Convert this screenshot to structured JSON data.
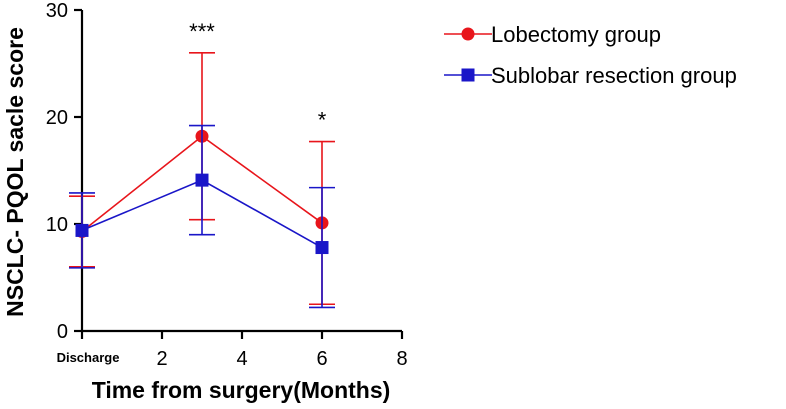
{
  "chart_data": {
    "type": "line",
    "xlabel": "Time from surgery(Months)",
    "ylabel": "NSCLC- PQOL sacle score",
    "xlim": [
      0,
      8
    ],
    "ylim": [
      0,
      30
    ],
    "x_ticks": [
      0,
      2,
      4,
      6,
      8
    ],
    "x_tick_labels": [
      "Discharge",
      "2",
      "4",
      "6",
      "8"
    ],
    "y_ticks": [
      0,
      10,
      20,
      30
    ],
    "y_tick_labels": [
      "0",
      "10",
      "20",
      "30"
    ],
    "grid": false,
    "legend_position": "top-right",
    "series": [
      {
        "name": "Lobectomy group",
        "color": "#e8151b",
        "marker": "circle",
        "x": [
          0,
          3,
          6
        ],
        "y": [
          9.3,
          18.2,
          10.1
        ],
        "error": [
          3.3,
          7.8,
          7.6
        ]
      },
      {
        "name": "Sublobar resection group",
        "color": "#1a16c8",
        "marker": "square",
        "x": [
          0,
          3,
          6
        ],
        "y": [
          9.4,
          14.1,
          7.8
        ],
        "error": [
          3.5,
          5.1,
          5.6
        ]
      }
    ],
    "annotations": [
      {
        "x": 3,
        "text": "***"
      },
      {
        "x": 6,
        "text": "*"
      }
    ]
  }
}
